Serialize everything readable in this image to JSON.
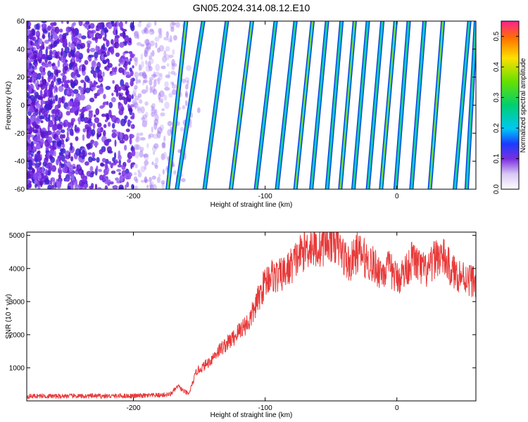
{
  "figure_title": "GN05.2024.314.08.12.E10",
  "chart_data": [
    {
      "type": "heatmap",
      "title": "GN05.2024.314.08.12.E10",
      "xlabel": "Height of straight line (km)",
      "ylabel": "Frequency (Hz)",
      "xlim": [
        -281,
        60
      ],
      "ylim": [
        -60,
        60
      ],
      "xticks": [
        -200,
        -100,
        0
      ],
      "yticks": [
        -60,
        -40,
        -20,
        0,
        20,
        40,
        60
      ],
      "noise_region_x": [
        -281,
        -150
      ],
      "stripes": [
        {
          "x_bottom": -174,
          "x_top": -160
        },
        {
          "x_bottom": -167,
          "x_top": -147
        },
        {
          "x_bottom": -146,
          "x_top": -129
        },
        {
          "x_bottom": -126,
          "x_top": -110
        },
        {
          "x_bottom": -107,
          "x_top": -92
        },
        {
          "x_bottom": -91,
          "x_top": -77
        },
        {
          "x_bottom": -77,
          "x_top": -64
        },
        {
          "x_bottom": -65,
          "x_top": -53
        },
        {
          "x_bottom": -53,
          "x_top": -42
        },
        {
          "x_bottom": -43,
          "x_top": -32
        },
        {
          "x_bottom": -33,
          "x_top": -22
        },
        {
          "x_bottom": -22,
          "x_top": -11
        },
        {
          "x_bottom": -12,
          "x_top": -1
        },
        {
          "x_bottom": -1,
          "x_top": 9
        },
        {
          "x_bottom": 11,
          "x_top": 21
        },
        {
          "x_bottom": 25,
          "x_top": 35
        },
        {
          "x_bottom": 44,
          "x_top": 55
        },
        {
          "x_bottom": 53,
          "x_top": 60
        }
      ],
      "colorbar": {
        "label": "Normalized spectral amplitude",
        "range": [
          0,
          0.55
        ],
        "ticks": [
          "0.0",
          "0.1",
          "0.2",
          "0.3",
          "0.4",
          "0.5"
        ]
      }
    },
    {
      "type": "line",
      "xlabel": "Height of straight line (km)",
      "ylabel": "SNR (10 * v/v)",
      "xlim": [
        -281,
        60
      ],
      "ylim": [
        0,
        5100
      ],
      "xticks": [
        -200,
        -100,
        0
      ],
      "yticks": [
        1000,
        2000,
        3000,
        4000,
        5000
      ],
      "color": "#e83a3a",
      "series": [
        {
          "x": [
            -281,
            -270,
            -260,
            -250,
            -240,
            -230,
            -220,
            -210,
            -200,
            -190,
            -180,
            -172,
            -166,
            -162,
            -158,
            -152,
            -148,
            -142,
            -136,
            -130,
            -124,
            -118,
            -112,
            -108,
            -104,
            -100,
            -96,
            -90,
            -84,
            -78,
            -72,
            -66,
            -60,
            -54,
            -48,
            -42,
            -36,
            -30,
            -24,
            -18,
            -12,
            -6,
            0,
            6,
            12,
            18,
            24,
            30,
            36,
            42,
            48,
            54,
            60
          ],
          "y": [
            140,
            150,
            140,
            150,
            140,
            150,
            145,
            150,
            150,
            160,
            170,
            200,
            450,
            300,
            200,
            900,
            1000,
            1200,
            1500,
            1700,
            1900,
            2200,
            2400,
            2800,
            3200,
            3600,
            3800,
            3750,
            3900,
            4200,
            4500,
            4700,
            4600,
            4800,
            4900,
            4500,
            4100,
            4500,
            4300,
            4100,
            3900,
            4000,
            3700,
            3900,
            4300,
            4000,
            3900,
            4400,
            4300,
            3900,
            3800,
            3700,
            3600
          ]
        }
      ]
    }
  ]
}
